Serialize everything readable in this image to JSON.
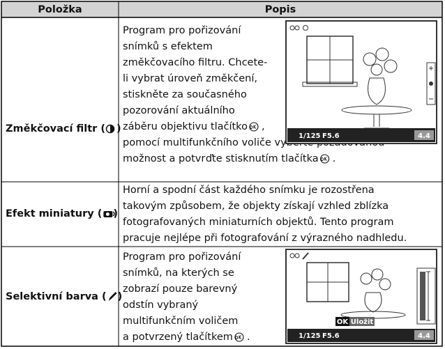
{
  "table": {
    "header": [
      "Položka",
      "Popis"
    ],
    "rows": [
      {
        "label": [
          "Změkčovací filtr (",
          ")"
        ],
        "description": [
          "Program pro pořizování",
          "snímků s efektem",
          "změkčovacího filtru. Chcete-",
          "li vybrat úroveň změkčení,",
          "stiskněte za současného",
          "pozorování aktuálního",
          "záběru objektivu tlačítko",
          ",",
          "pomocí multifunkčního voliče vyberte požadovanou",
          "možnost a potvrďte stisknutím tlačítka",
          "."
        ],
        "screen": {
          "shutter": "1/125",
          "aperture": "F5.6",
          "value": "4.4"
        }
      },
      {
        "label": [
          "Efekt miniatury (",
          ")"
        ],
        "description": [
          "Horní a spodní část každého snímku je rozostřena",
          "takovým způsobem, že objekty získají vzhled zblízka",
          "fotografovaných miniaturních objektů. Tento program",
          "pracuje nejlépe při fotografování z výrazného nadhledu."
        ]
      },
      {
        "label": [
          "Selektivní barva (",
          ")"
        ],
        "description": [
          "Program pro pořizování",
          "snímků, na kterých se",
          "zobrazí pouze barevný",
          "odstín vybraný",
          "multifunkčním voličem",
          "a potvrzený tlačítkem",
          "."
        ],
        "screen": {
          "button": "OK",
          "action": "Uložit",
          "shutter": "1/125",
          "aperture": "F5.6",
          "value": "4.4"
        }
      }
    ]
  }
}
